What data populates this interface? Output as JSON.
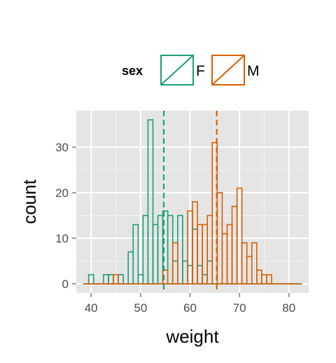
{
  "chart_data": {
    "type": "histogram",
    "xlabel": "weight",
    "ylabel": "count",
    "xlim": [
      37,
      84
    ],
    "ylim": [
      -2,
      38
    ],
    "x_ticks": [
      40,
      50,
      60,
      70,
      80
    ],
    "y_ticks": [
      0,
      10,
      20,
      30
    ],
    "binwidth": 1,
    "grid": true,
    "legend": {
      "title": "sex",
      "position": "top"
    },
    "series": [
      {
        "name": "F",
        "color": "#1b9e77",
        "mean": 54.7,
        "bins": [
          {
            "x": 39,
            "count": 0
          },
          {
            "x": 40,
            "count": 2
          },
          {
            "x": 41,
            "count": 0
          },
          {
            "x": 42,
            "count": 0
          },
          {
            "x": 43,
            "count": 2
          },
          {
            "x": 44,
            "count": 2
          },
          {
            "x": 45,
            "count": 0
          },
          {
            "x": 46,
            "count": 2
          },
          {
            "x": 47,
            "count": 0
          },
          {
            "x": 48,
            "count": 7
          },
          {
            "x": 49,
            "count": 13
          },
          {
            "x": 50,
            "count": 2
          },
          {
            "x": 51,
            "count": 15
          },
          {
            "x": 52,
            "count": 36
          },
          {
            "x": 53,
            "count": 13
          },
          {
            "x": 54,
            "count": 15
          },
          {
            "x": 55,
            "count": 16
          },
          {
            "x": 56,
            "count": 15
          },
          {
            "x": 57,
            "count": 5
          },
          {
            "x": 58,
            "count": 15
          },
          {
            "x": 59,
            "count": 5
          },
          {
            "x": 60,
            "count": 4
          },
          {
            "x": 61,
            "count": 12
          },
          {
            "x": 62,
            "count": 4
          },
          {
            "x": 63,
            "count": 2
          },
          {
            "x": 64,
            "count": 5
          },
          {
            "x": 65,
            "count": 0
          },
          {
            "x": 66,
            "count": 0
          },
          {
            "x": 67,
            "count": 0
          },
          {
            "x": 68,
            "count": 0
          },
          {
            "x": 69,
            "count": 0
          },
          {
            "x": 70,
            "count": 0
          },
          {
            "x": 71,
            "count": 0
          },
          {
            "x": 72,
            "count": 0
          },
          {
            "x": 73,
            "count": 0
          },
          {
            "x": 74,
            "count": 0
          },
          {
            "x": 75,
            "count": 0
          },
          {
            "x": 76,
            "count": 0
          },
          {
            "x": 77,
            "count": 0
          },
          {
            "x": 78,
            "count": 0
          },
          {
            "x": 79,
            "count": 0
          },
          {
            "x": 80,
            "count": 0
          },
          {
            "x": 81,
            "count": 0
          },
          {
            "x": 82,
            "count": 0
          }
        ]
      },
      {
        "name": "M",
        "color": "#d95f02",
        "mean": 65.4,
        "bins": [
          {
            "x": 39,
            "count": 0
          },
          {
            "x": 40,
            "count": 0
          },
          {
            "x": 41,
            "count": 0
          },
          {
            "x": 42,
            "count": 0
          },
          {
            "x": 43,
            "count": 0
          },
          {
            "x": 44,
            "count": 0
          },
          {
            "x": 45,
            "count": 2
          },
          {
            "x": 46,
            "count": 0
          },
          {
            "x": 47,
            "count": 0
          },
          {
            "x": 48,
            "count": 0
          },
          {
            "x": 49,
            "count": 0
          },
          {
            "x": 50,
            "count": 0
          },
          {
            "x": 51,
            "count": 0
          },
          {
            "x": 52,
            "count": 0
          },
          {
            "x": 53,
            "count": 0
          },
          {
            "x": 54,
            "count": 0
          },
          {
            "x": 55,
            "count": 3
          },
          {
            "x": 56,
            "count": 0
          },
          {
            "x": 57,
            "count": 9
          },
          {
            "x": 58,
            "count": 0
          },
          {
            "x": 59,
            "count": 0
          },
          {
            "x": 60,
            "count": 16
          },
          {
            "x": 61,
            "count": 18
          },
          {
            "x": 62,
            "count": 13
          },
          {
            "x": 63,
            "count": 13
          },
          {
            "x": 64,
            "count": 15
          },
          {
            "x": 65,
            "count": 31
          },
          {
            "x": 66,
            "count": 20
          },
          {
            "x": 67,
            "count": 11
          },
          {
            "x": 68,
            "count": 13
          },
          {
            "x": 69,
            "count": 17
          },
          {
            "x": 70,
            "count": 21
          },
          {
            "x": 71,
            "count": 9
          },
          {
            "x": 72,
            "count": 6
          },
          {
            "x": 73,
            "count": 9
          },
          {
            "x": 74,
            "count": 3
          },
          {
            "x": 75,
            "count": 2
          },
          {
            "x": 76,
            "count": 2
          },
          {
            "x": 77,
            "count": 0
          },
          {
            "x": 78,
            "count": 0
          },
          {
            "x": 79,
            "count": 0
          },
          {
            "x": 80,
            "count": 0
          },
          {
            "x": 81,
            "count": 0
          },
          {
            "x": 82,
            "count": 0
          }
        ]
      }
    ]
  }
}
